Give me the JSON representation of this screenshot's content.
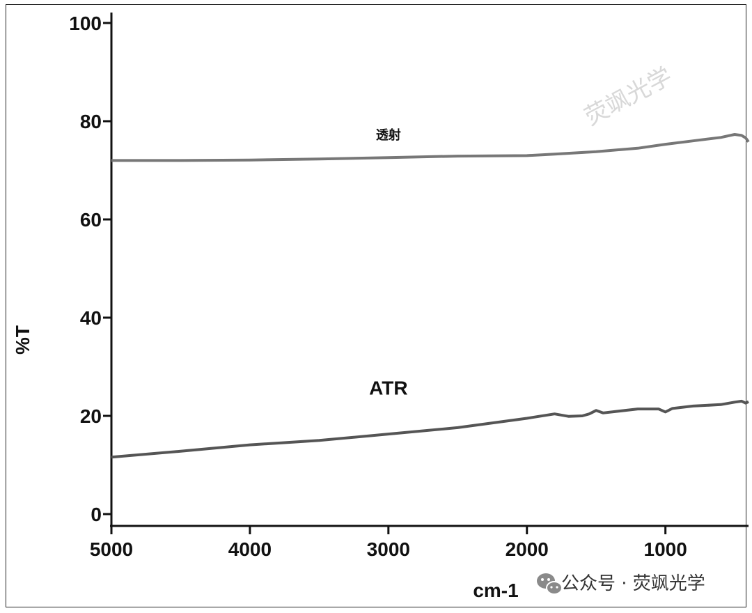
{
  "chart_data": {
    "type": "line",
    "ylabel": "%T",
    "xlabel": "cm-1",
    "xlim": [
      5000,
      400
    ],
    "ylim": [
      0,
      100
    ],
    "x_ticks": [
      5000,
      4000,
      3000,
      2000,
      1000
    ],
    "y_ticks": [
      0,
      20,
      40,
      60,
      80,
      100
    ],
    "grid": false,
    "series": [
      {
        "name": "透射",
        "color": "#777777",
        "x": [
          5000,
          4500,
          4000,
          3500,
          3000,
          2500,
          2000,
          1800,
          1500,
          1200,
          1000,
          800,
          600,
          500,
          450,
          420,
          400
        ],
        "y": [
          72.0,
          72.0,
          72.1,
          72.3,
          72.6,
          72.9,
          73.0,
          73.3,
          73.8,
          74.5,
          75.3,
          76.0,
          76.7,
          77.3,
          77.1,
          76.6,
          75.8
        ]
      },
      {
        "name": "ATR",
        "color": "#555555",
        "x": [
          5000,
          4500,
          4000,
          3500,
          3000,
          2500,
          2000,
          1800,
          1700,
          1600,
          1550,
          1500,
          1450,
          1200,
          1050,
          1000,
          950,
          800,
          600,
          500,
          450,
          420,
          400
        ],
        "y": [
          11.6,
          12.8,
          14.1,
          15.0,
          16.3,
          17.6,
          19.5,
          20.4,
          19.9,
          20.0,
          20.4,
          21.1,
          20.6,
          21.4,
          21.4,
          20.8,
          21.5,
          22.0,
          22.3,
          22.8,
          23.0,
          22.6,
          22.9
        ]
      }
    ],
    "annotations": [
      {
        "text": "透射",
        "x": 3000,
        "y": 76.3
      },
      {
        "text": "ATR",
        "x": 3000,
        "y": 24.3
      }
    ]
  },
  "watermark": {
    "text": "荧飒光学"
  },
  "footer": {
    "text": "公众号 · 荧飒光学",
    "icon": "wechat-icon"
  }
}
